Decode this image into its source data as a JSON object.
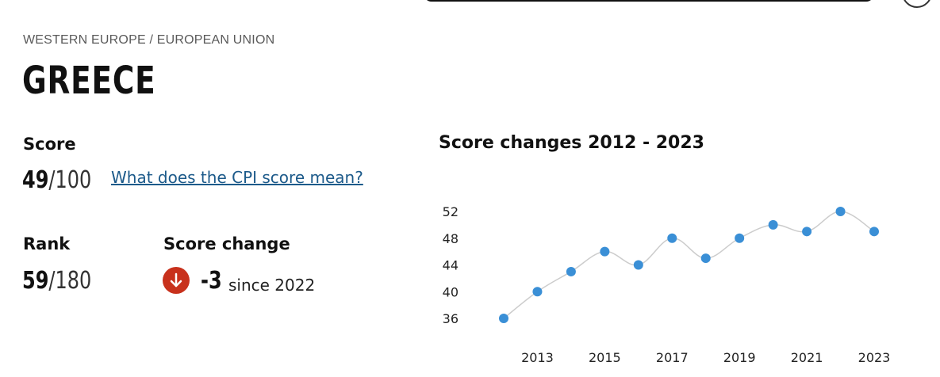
{
  "breadcrumb": "WESTERN EUROPE / EUROPEAN UNION",
  "country": "GREECE",
  "score": {
    "label": "Score",
    "value": "49",
    "max": "/100",
    "link": "What does the CPI score mean?"
  },
  "rank": {
    "label": "Rank",
    "value": "59",
    "max": "/180"
  },
  "score_change": {
    "label": "Score change",
    "value": "-3",
    "since": "since 2022",
    "direction_icon": "arrow-down-icon"
  },
  "colors": {
    "accent_red": "#c8311c",
    "point_blue": "#3a8fd6",
    "line_gray": "#cccccc",
    "link_blue": "#1c5a8a"
  },
  "chart_data": {
    "type": "line",
    "title": "Score changes 2012 - 2023",
    "x": [
      2012,
      2013,
      2014,
      2015,
      2016,
      2017,
      2018,
      2019,
      2020,
      2021,
      2022,
      2023
    ],
    "series": [
      {
        "values": [
          36,
          40,
          43,
          46,
          44,
          48,
          45,
          48,
          50,
          49,
          52,
          49
        ]
      }
    ],
    "y_ticks": [
      36,
      40,
      44,
      48,
      52
    ],
    "x_tick_labels": [
      "2013",
      "2015",
      "2017",
      "2019",
      "2021",
      "2023"
    ],
    "ylim": [
      36,
      52
    ],
    "grid": false,
    "xlabel": "",
    "ylabel": ""
  }
}
